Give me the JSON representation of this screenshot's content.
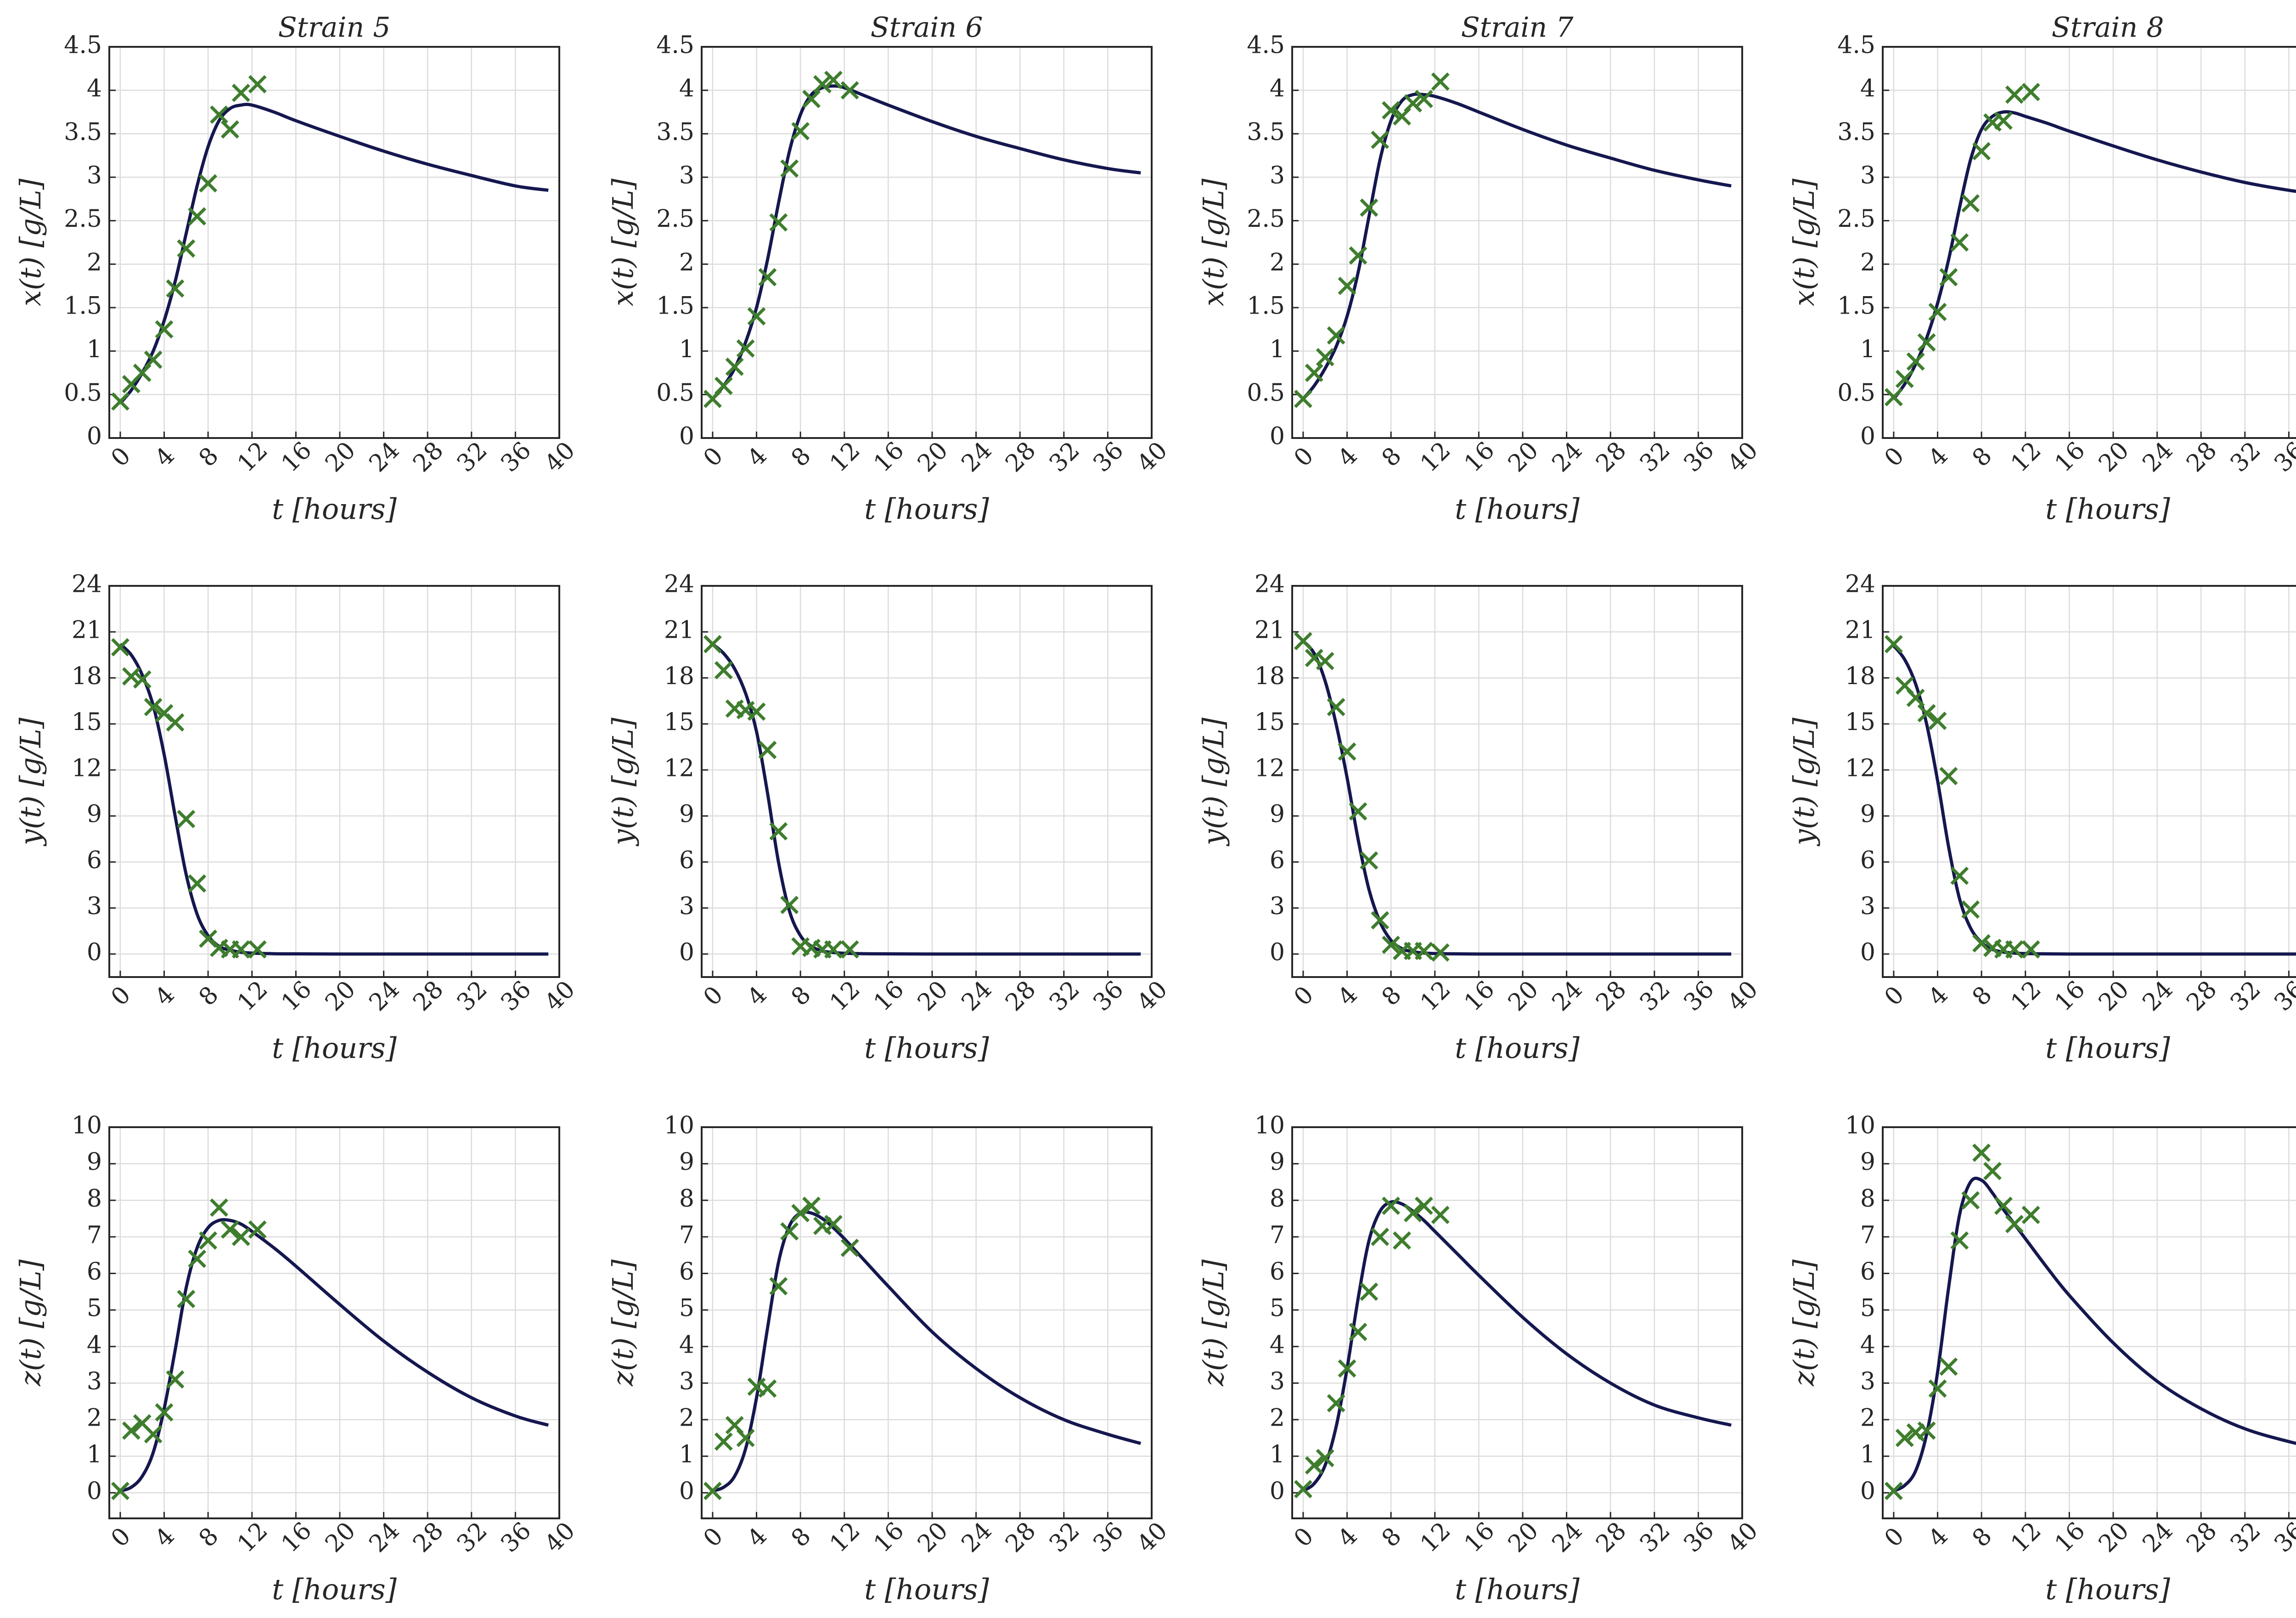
{
  "chart_data": {
    "type": "line",
    "strains": [
      "Strain 5",
      "Strain 6",
      "Strain 7",
      "Strain 8"
    ],
    "shared_x": {
      "label": "t [hours]",
      "range": [
        -1,
        40
      ],
      "ticks": [
        0,
        4,
        8,
        12,
        16,
        20,
        24,
        28,
        32,
        36,
        40
      ],
      "tick_labels": [
        "0",
        "4",
        "8",
        "12",
        "16",
        "20",
        "24",
        "28",
        "32",
        "36",
        "40"
      ]
    },
    "rows": [
      {
        "variable": "x",
        "ylabel": "x(t) [g/L]",
        "ylim": [
          0,
          4.5
        ],
        "yticks": [
          0,
          0.5,
          1,
          1.5,
          2,
          2.5,
          3,
          3.5,
          4,
          4.5
        ],
        "ytick_labels": [
          "0",
          "0.5",
          "1",
          "1.5",
          "2",
          "2.5",
          "3",
          "3.5",
          "4",
          "4.5"
        ]
      },
      {
        "variable": "y",
        "ylabel": "y(t) [g/L]",
        "ylim": [
          -1.5,
          24
        ],
        "yticks": [
          0,
          3,
          6,
          9,
          12,
          15,
          18,
          21,
          24
        ],
        "ytick_labels": [
          "0",
          "3",
          "6",
          "9",
          "12",
          "15",
          "18",
          "21",
          "24"
        ]
      },
      {
        "variable": "z",
        "ylabel": "z(t) [g/L]",
        "ylim": [
          -0.7,
          10
        ],
        "yticks": [
          0,
          1,
          2,
          3,
          4,
          5,
          6,
          7,
          8,
          9,
          10
        ],
        "ytick_labels": [
          "0",
          "1",
          "2",
          "3",
          "4",
          "5",
          "6",
          "7",
          "8",
          "9",
          "10"
        ]
      }
    ],
    "panels": [
      {
        "row": 0,
        "col": 0,
        "title": "Strain 5",
        "model": {
          "x": [
            0,
            1,
            2,
            3,
            4,
            5,
            6,
            7,
            8,
            9,
            10,
            11,
            12,
            14,
            16,
            20,
            24,
            28,
            32,
            36,
            39
          ],
          "y": [
            0.4,
            0.55,
            0.75,
            1.0,
            1.35,
            1.8,
            2.35,
            2.9,
            3.35,
            3.65,
            3.79,
            3.83,
            3.83,
            3.75,
            3.65,
            3.47,
            3.3,
            3.15,
            3.02,
            2.9,
            2.85
          ]
        },
        "obs": {
          "x": [
            0,
            1,
            2,
            3,
            4,
            5,
            6,
            7,
            8,
            9,
            10,
            11,
            12.5
          ],
          "y": [
            0.42,
            0.62,
            0.75,
            0.9,
            1.25,
            1.72,
            2.18,
            2.55,
            2.93,
            3.72,
            3.55,
            3.97,
            4.07
          ]
        }
      },
      {
        "row": 0,
        "col": 1,
        "title": "Strain 6",
        "model": {
          "x": [
            0,
            1,
            2,
            3,
            4,
            5,
            6,
            7,
            8,
            9,
            10,
            11,
            12,
            14,
            16,
            20,
            24,
            28,
            32,
            36,
            39
          ],
          "y": [
            0.45,
            0.6,
            0.8,
            1.1,
            1.5,
            2.05,
            2.7,
            3.3,
            3.72,
            3.95,
            4.03,
            4.05,
            4.03,
            3.93,
            3.83,
            3.64,
            3.47,
            3.33,
            3.2,
            3.1,
            3.05
          ]
        },
        "obs": {
          "x": [
            0,
            1,
            2,
            3,
            4,
            5,
            6,
            7,
            8,
            9,
            10,
            11,
            12.5
          ],
          "y": [
            0.45,
            0.6,
            0.82,
            1.03,
            1.4,
            1.85,
            2.48,
            3.1,
            3.53,
            3.9,
            4.07,
            4.12,
            4.0
          ]
        }
      },
      {
        "row": 0,
        "col": 2,
        "title": "Strain 7",
        "model": {
          "x": [
            0,
            1,
            2,
            3,
            4,
            5,
            6,
            7,
            8,
            9,
            10,
            11,
            12,
            14,
            16,
            20,
            24,
            28,
            32,
            36,
            39
          ],
          "y": [
            0.45,
            0.6,
            0.8,
            1.05,
            1.4,
            1.9,
            2.55,
            3.2,
            3.65,
            3.88,
            3.95,
            3.95,
            3.93,
            3.85,
            3.75,
            3.55,
            3.37,
            3.22,
            3.08,
            2.97,
            2.9
          ]
        },
        "obs": {
          "x": [
            0,
            1,
            2,
            3,
            4,
            5,
            6,
            7,
            8,
            9,
            10,
            11,
            12.5
          ],
          "y": [
            0.45,
            0.75,
            0.93,
            1.18,
            1.75,
            2.1,
            2.65,
            3.43,
            3.77,
            3.7,
            3.85,
            3.9,
            4.1
          ]
        }
      },
      {
        "row": 0,
        "col": 3,
        "title": "Strain 8",
        "model": {
          "x": [
            0,
            1,
            2,
            3,
            4,
            5,
            6,
            7,
            8,
            9,
            10,
            11,
            12,
            14,
            16,
            20,
            24,
            28,
            32,
            36,
            39
          ],
          "y": [
            0.45,
            0.62,
            0.85,
            1.15,
            1.55,
            2.05,
            2.65,
            3.2,
            3.55,
            3.7,
            3.75,
            3.74,
            3.7,
            3.62,
            3.53,
            3.36,
            3.2,
            3.06,
            2.94,
            2.85,
            2.8
          ]
        },
        "obs": {
          "x": [
            0,
            1,
            2,
            3,
            4,
            5,
            6,
            7,
            8,
            9,
            10,
            11,
            12.5
          ],
          "y": [
            0.47,
            0.68,
            0.88,
            1.1,
            1.45,
            1.85,
            2.25,
            2.7,
            3.3,
            3.63,
            3.65,
            3.95,
            3.98
          ]
        }
      },
      {
        "row": 1,
        "col": 0,
        "title": "",
        "model": {
          "x": [
            0,
            1,
            2,
            3,
            4,
            5,
            6,
            7,
            8,
            9,
            10,
            11,
            12,
            14,
            16,
            20,
            24,
            28,
            32,
            36,
            39
          ],
          "y": [
            20.2,
            19.5,
            18.2,
            16.2,
            13.0,
            9.0,
            5.2,
            2.6,
            1.2,
            0.5,
            0.25,
            0.12,
            0.06,
            0.02,
            0.01,
            0,
            0,
            0,
            0,
            0,
            0
          ]
        },
        "obs": {
          "x": [
            0,
            1,
            2,
            3,
            4,
            5,
            6,
            7,
            8,
            9,
            10,
            11,
            12.5
          ],
          "y": [
            20.0,
            18.1,
            17.9,
            16.1,
            15.7,
            15.1,
            8.8,
            4.6,
            1.0,
            0.4,
            0.3,
            0.3,
            0.3
          ]
        }
      },
      {
        "row": 1,
        "col": 1,
        "title": "",
        "model": {
          "x": [
            0,
            1,
            2,
            3,
            4,
            5,
            6,
            7,
            8,
            9,
            10,
            11,
            12,
            14,
            16,
            20,
            24,
            28,
            32,
            36,
            39
          ],
          "y": [
            20.2,
            19.6,
            18.6,
            17.0,
            14.5,
            10.5,
            6.0,
            2.8,
            1.2,
            0.5,
            0.2,
            0.1,
            0.05,
            0.02,
            0.01,
            0,
            0,
            0,
            0,
            0,
            0
          ]
        },
        "obs": {
          "x": [
            0,
            1,
            2,
            3,
            4,
            5,
            6,
            7,
            8,
            9,
            10,
            11,
            12.5
          ],
          "y": [
            20.2,
            18.5,
            16.0,
            15.9,
            15.8,
            13.3,
            8.0,
            3.2,
            0.5,
            0.4,
            0.3,
            0.3,
            0.3
          ]
        }
      },
      {
        "row": 1,
        "col": 2,
        "title": "",
        "model": {
          "x": [
            0,
            1,
            2,
            3,
            4,
            5,
            6,
            7,
            8,
            9,
            10,
            11,
            12,
            14,
            16,
            20,
            24,
            28,
            32,
            36,
            39
          ],
          "y": [
            20.4,
            19.6,
            17.8,
            15.0,
            11.5,
            7.5,
            4.2,
            2.1,
            0.9,
            0.35,
            0.15,
            0.07,
            0.03,
            0.01,
            0,
            0,
            0,
            0,
            0,
            0,
            0
          ]
        },
        "obs": {
          "x": [
            0,
            1,
            2,
            3,
            4,
            5,
            6,
            7,
            8,
            9,
            10,
            11,
            12.5
          ],
          "y": [
            20.4,
            19.3,
            19.1,
            16.1,
            13.2,
            9.3,
            6.1,
            2.2,
            0.6,
            0.2,
            0.2,
            0.2,
            0.1
          ]
        }
      },
      {
        "row": 1,
        "col": 3,
        "title": "",
        "model": {
          "x": [
            0,
            1,
            2,
            3,
            4,
            5,
            6,
            7,
            8,
            9,
            10,
            11,
            12,
            14,
            16,
            20,
            24,
            28,
            32,
            36,
            39
          ],
          "y": [
            20.1,
            19.2,
            17.6,
            15.0,
            11.3,
            7.0,
            3.6,
            1.7,
            0.75,
            0.3,
            0.13,
            0.06,
            0.03,
            0.01,
            0,
            0,
            0,
            0,
            0,
            0,
            0
          ]
        },
        "obs": {
          "x": [
            0,
            1,
            2,
            3,
            4,
            5,
            6,
            7,
            8,
            9,
            10,
            11,
            12.5
          ],
          "y": [
            20.2,
            17.5,
            16.7,
            15.7,
            15.2,
            11.6,
            5.1,
            2.9,
            0.7,
            0.4,
            0.3,
            0.3,
            0.3
          ]
        }
      },
      {
        "row": 2,
        "col": 0,
        "title": "",
        "model": {
          "x": [
            0,
            1,
            2,
            3,
            4,
            5,
            6,
            7,
            8,
            9,
            10,
            11,
            12,
            14,
            16,
            20,
            24,
            28,
            32,
            36,
            39
          ],
          "y": [
            0.05,
            0.15,
            0.45,
            1.1,
            2.3,
            3.9,
            5.6,
            6.7,
            7.25,
            7.45,
            7.45,
            7.35,
            7.15,
            6.7,
            6.2,
            5.15,
            4.15,
            3.3,
            2.6,
            2.1,
            1.85
          ]
        },
        "obs": {
          "x": [
            0,
            1,
            2,
            3,
            4,
            5,
            6,
            7,
            8,
            9,
            10,
            11,
            12.5
          ],
          "y": [
            0.05,
            1.7,
            1.9,
            1.6,
            2.2,
            3.1,
            5.3,
            6.4,
            6.9,
            7.8,
            7.2,
            7.0,
            7.2
          ]
        }
      },
      {
        "row": 2,
        "col": 1,
        "title": "",
        "model": {
          "x": [
            0,
            1,
            2,
            3,
            4,
            5,
            6,
            7,
            8,
            9,
            10,
            11,
            12,
            14,
            16,
            20,
            24,
            28,
            32,
            36,
            39
          ],
          "y": [
            0.05,
            0.15,
            0.45,
            1.2,
            2.6,
            4.5,
            6.3,
            7.3,
            7.65,
            7.65,
            7.5,
            7.25,
            6.95,
            6.3,
            5.65,
            4.4,
            3.4,
            2.6,
            2.0,
            1.6,
            1.35
          ]
        },
        "obs": {
          "x": [
            0,
            1,
            2,
            3,
            4,
            5,
            6,
            7,
            8,
            9,
            10,
            11,
            12.5
          ],
          "y": [
            0.05,
            1.4,
            1.85,
            1.5,
            2.9,
            2.85,
            5.65,
            7.15,
            7.65,
            7.85,
            7.3,
            7.35,
            6.7
          ]
        }
      },
      {
        "row": 2,
        "col": 2,
        "title": "",
        "model": {
          "x": [
            0,
            1,
            2,
            3,
            4,
            5,
            6,
            7,
            8,
            9,
            10,
            11,
            12,
            14,
            16,
            20,
            24,
            28,
            32,
            36,
            39
          ],
          "y": [
            0.05,
            0.25,
            0.75,
            1.8,
            3.4,
            5.3,
            6.9,
            7.7,
            7.95,
            7.9,
            7.7,
            7.45,
            7.15,
            6.55,
            5.95,
            4.8,
            3.8,
            3.0,
            2.4,
            2.05,
            1.85
          ]
        },
        "obs": {
          "x": [
            0,
            1,
            2,
            3,
            4,
            5,
            6,
            7,
            8,
            9,
            10,
            11,
            12.5
          ],
          "y": [
            0.1,
            0.75,
            0.95,
            2.45,
            3.4,
            4.4,
            5.5,
            7.0,
            7.85,
            6.9,
            7.65,
            7.85,
            7.6
          ]
        }
      },
      {
        "row": 2,
        "col": 3,
        "title": "",
        "model": {
          "x": [
            0,
            1,
            2,
            3,
            4,
            5,
            6,
            7,
            8,
            9,
            10,
            11,
            12,
            14,
            16,
            20,
            24,
            28,
            32,
            36,
            39
          ],
          "y": [
            0.05,
            0.2,
            0.6,
            1.6,
            3.3,
            5.6,
            7.6,
            8.5,
            8.55,
            8.2,
            7.75,
            7.35,
            6.95,
            6.15,
            5.4,
            4.1,
            3.05,
            2.3,
            1.75,
            1.4,
            1.2
          ]
        },
        "obs": {
          "x": [
            0,
            1,
            2,
            3,
            4,
            5,
            6,
            7,
            8,
            9,
            10,
            11,
            12.5
          ],
          "y": [
            0.05,
            1.5,
            1.65,
            1.7,
            2.85,
            3.45,
            6.9,
            8.0,
            9.3,
            8.8,
            7.85,
            7.35,
            7.6
          ]
        }
      }
    ]
  }
}
